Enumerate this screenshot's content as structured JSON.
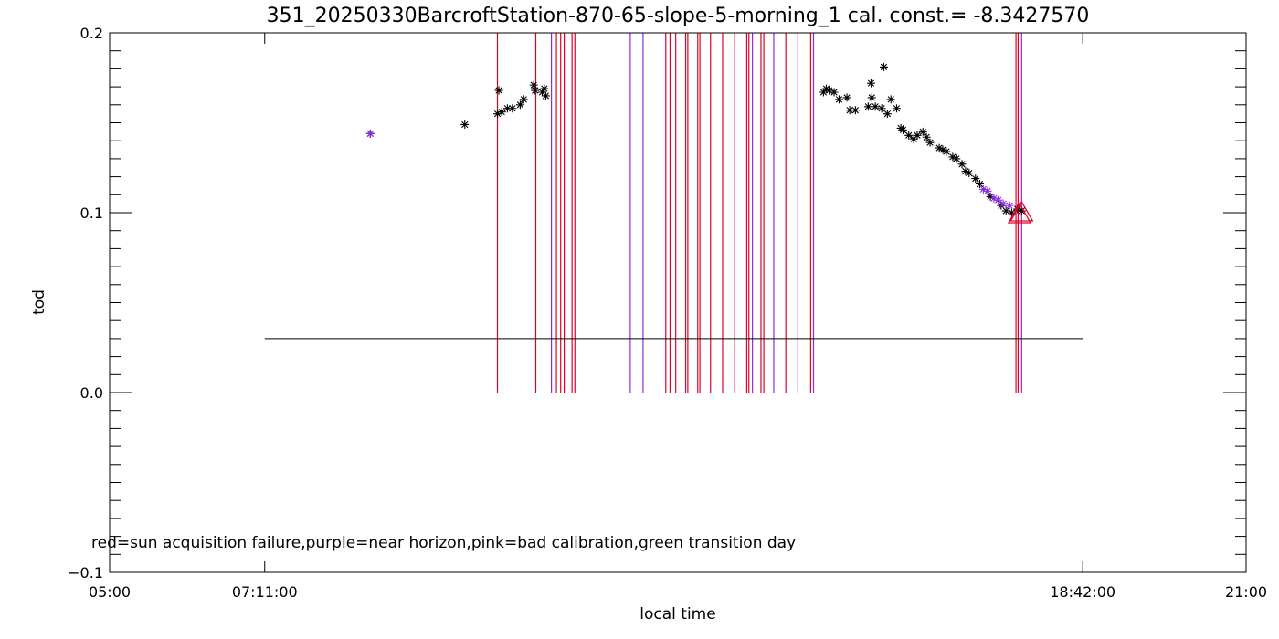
{
  "chart_data": {
    "type": "scatter",
    "title": "351_20250330BarcroftStation-870-65-slope-5-morning_1 cal. const.= -8.3427570",
    "xlabel": "local time",
    "ylabel": "tod",
    "xlim_hours": [
      5,
      21
    ],
    "ylim": [
      -0.1,
      0.2
    ],
    "x_tick_labels": [
      {
        "hour": 5,
        "label": "05:00"
      },
      {
        "hour": 7.1833,
        "label": "07:11:00"
      },
      {
        "hour": 18.7,
        "label": "18:42:00"
      },
      {
        "hour": 21,
        "label": "21:00"
      }
    ],
    "y_tick_labels": [
      {
        "value": -0.1,
        "label": "−0.1"
      },
      {
        "value": 0.0,
        "label": "0.0"
      },
      {
        "value": 0.1,
        "label": "0.1"
      },
      {
        "value": 0.2,
        "label": "0.2"
      }
    ],
    "reference_line": {
      "y": 0.03,
      "x_start_hour": 7.1833,
      "x_end_hour": 18.7
    },
    "flag_lines_hours": [
      {
        "hour": 10.46,
        "color": "red"
      },
      {
        "hour": 11.0,
        "color": "red"
      },
      {
        "hour": 11.22,
        "color": "purple"
      },
      {
        "hour": 11.29,
        "color": "red"
      },
      {
        "hour": 11.35,
        "color": "red"
      },
      {
        "hour": 11.4,
        "color": "red"
      },
      {
        "hour": 11.51,
        "color": "red"
      },
      {
        "hour": 11.55,
        "color": "red"
      },
      {
        "hour": 12.33,
        "color": "purple"
      },
      {
        "hour": 12.51,
        "color": "purple"
      },
      {
        "hour": 12.83,
        "color": "red"
      },
      {
        "hour": 12.89,
        "color": "red"
      },
      {
        "hour": 12.97,
        "color": "red"
      },
      {
        "hour": 13.11,
        "color": "red"
      },
      {
        "hour": 13.14,
        "color": "red"
      },
      {
        "hour": 13.28,
        "color": "red"
      },
      {
        "hour": 13.31,
        "color": "red"
      },
      {
        "hour": 13.46,
        "color": "red"
      },
      {
        "hour": 13.63,
        "color": "red"
      },
      {
        "hour": 13.8,
        "color": "red"
      },
      {
        "hour": 13.97,
        "color": "red"
      },
      {
        "hour": 14.0,
        "color": "red"
      },
      {
        "hour": 14.05,
        "color": "purple"
      },
      {
        "hour": 14.17,
        "color": "red"
      },
      {
        "hour": 14.21,
        "color": "red"
      },
      {
        "hour": 14.35,
        "color": "purple"
      },
      {
        "hour": 14.52,
        "color": "red"
      },
      {
        "hour": 14.69,
        "color": "red"
      },
      {
        "hour": 14.87,
        "color": "red"
      },
      {
        "hour": 14.91,
        "color": "purple"
      },
      {
        "hour": 17.76,
        "color": "red"
      },
      {
        "hour": 17.79,
        "color": "red"
      },
      {
        "hour": 17.84,
        "color": "purple"
      }
    ],
    "series": [
      {
        "marker": "asterisk",
        "color": "#000000",
        "points": [
          [
            8.67,
            0.144
          ],
          [
            10.0,
            0.149
          ],
          [
            10.46,
            0.155
          ],
          [
            10.48,
            0.168
          ],
          [
            10.52,
            0.156
          ],
          [
            10.6,
            0.158
          ],
          [
            10.67,
            0.158
          ],
          [
            10.78,
            0.16
          ],
          [
            10.83,
            0.163
          ],
          [
            10.97,
            0.171
          ],
          [
            10.99,
            0.168
          ],
          [
            11.09,
            0.167
          ],
          [
            11.12,
            0.169
          ],
          [
            11.14,
            0.165
          ],
          [
            15.05,
            0.167
          ],
          [
            15.09,
            0.169
          ],
          [
            15.13,
            0.168
          ],
          [
            15.2,
            0.167
          ],
          [
            15.27,
            0.163
          ],
          [
            15.38,
            0.164
          ],
          [
            15.42,
            0.157
          ],
          [
            15.5,
            0.157
          ],
          [
            15.68,
            0.159
          ],
          [
            15.72,
            0.172
          ],
          [
            15.73,
            0.164
          ],
          [
            15.78,
            0.159
          ],
          [
            15.87,
            0.158
          ],
          [
            15.9,
            0.181
          ],
          [
            15.95,
            0.155
          ],
          [
            16.0,
            0.163
          ],
          [
            16.08,
            0.158
          ],
          [
            16.14,
            0.147
          ],
          [
            16.17,
            0.146
          ],
          [
            16.25,
            0.143
          ],
          [
            16.32,
            0.141
          ],
          [
            16.37,
            0.143
          ],
          [
            16.45,
            0.145
          ],
          [
            16.5,
            0.142
          ],
          [
            16.55,
            0.139
          ],
          [
            16.68,
            0.136
          ],
          [
            16.73,
            0.135
          ],
          [
            16.78,
            0.134
          ],
          [
            16.87,
            0.131
          ],
          [
            16.92,
            0.13
          ],
          [
            17.0,
            0.127
          ],
          [
            17.05,
            0.123
          ],
          [
            17.1,
            0.122
          ],
          [
            17.19,
            0.119
          ],
          [
            17.25,
            0.116
          ],
          [
            17.4,
            0.109
          ],
          [
            17.55,
            0.104
          ],
          [
            17.62,
            0.101
          ],
          [
            17.7,
            0.1
          ],
          [
            17.78,
            0.102
          ],
          [
            17.84,
            0.101
          ]
        ]
      },
      {
        "marker": "asterisk",
        "color": "#8a2be2",
        "points": [
          [
            8.67,
            0.144
          ],
          [
            17.3,
            0.113
          ],
          [
            17.36,
            0.112
          ],
          [
            17.45,
            0.108
          ],
          [
            17.51,
            0.107
          ],
          [
            17.58,
            0.105
          ],
          [
            17.67,
            0.104
          ]
        ]
      },
      {
        "marker": "triangle",
        "color": "#e0002a",
        "points": [
          [
            17.81,
            0.099
          ],
          [
            17.84,
            0.1
          ]
        ]
      }
    ],
    "annotation": "red=sun acquisition failure,purple=near horizon,pink=bad calibration,green transition day",
    "colors": {
      "red": "#e0002a",
      "purple": "#8a2be2",
      "axes": "#000000"
    }
  }
}
